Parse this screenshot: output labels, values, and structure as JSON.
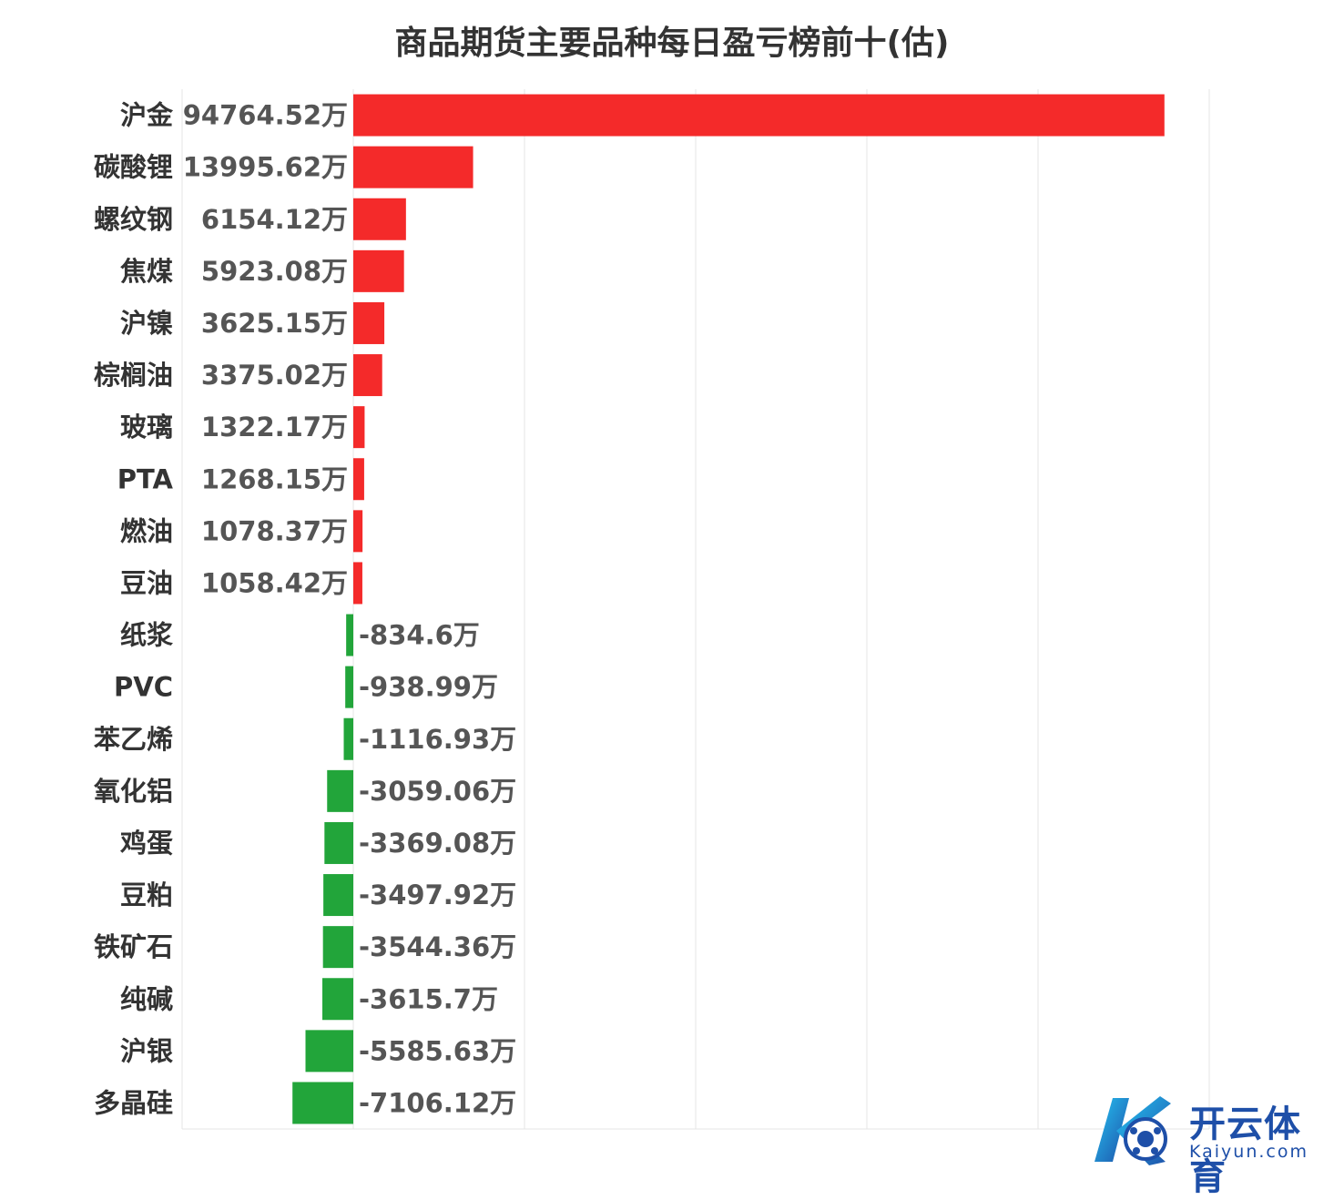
{
  "chart_data": {
    "type": "bar",
    "orientation": "horizontal",
    "title": "商品期货主要品种每日盈亏榜前十(估)",
    "unit": "万",
    "categories": [
      "沪金",
      "碳酸锂",
      "螺纹钢",
      "焦煤",
      "沪镍",
      "棕榈油",
      "玻璃",
      "PTA",
      "燃油",
      "豆油",
      "纸浆",
      "PVC",
      "苯乙烯",
      "氧化铝",
      "鸡蛋",
      "豆粕",
      "铁矿石",
      "纯碱",
      "沪银",
      "多晶硅"
    ],
    "values": [
      94764.52,
      13995.62,
      6154.12,
      5923.08,
      3625.15,
      3375.02,
      1322.17,
      1268.15,
      1078.37,
      1058.42,
      -834.6,
      -938.99,
      -1116.93,
      -3059.06,
      -3369.08,
      -3497.92,
      -3544.36,
      -3615.7,
      -5585.63,
      -7106.12
    ],
    "value_labels": [
      "94764.52万",
      "13995.62万",
      "6154.12万",
      "5923.08万",
      "3625.15万",
      "3375.02万",
      "1322.17万",
      "1268.15万",
      "1078.37万",
      "1058.42万",
      "-834.6万",
      "-938.99万",
      "-1116.93万",
      "-3059.06万",
      "-3369.08万",
      "-3497.92万",
      "-3544.36万",
      "-3615.7万",
      "-5585.63万",
      "-7106.12万"
    ],
    "xlim": [
      -20000,
      100000
    ],
    "grid": true,
    "colors": {
      "positive": "#f42a2a",
      "negative": "#22a53a",
      "grid": "#e6e6e6"
    }
  },
  "watermark": {
    "title": "开云体育",
    "url": "Kaiyun.com"
  }
}
